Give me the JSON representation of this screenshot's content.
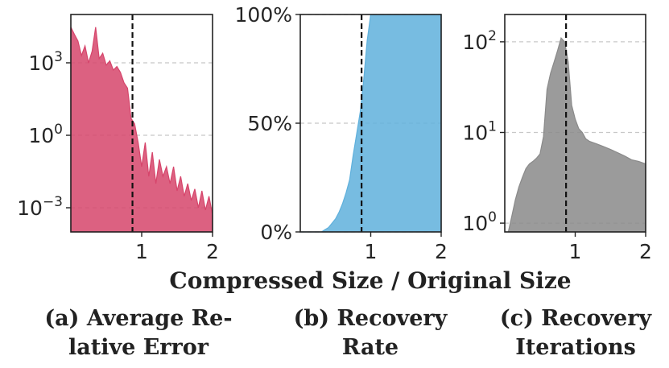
{
  "figure": {
    "xlabel": "Compressed Size / Original Size",
    "captions": [
      [
        "(a) Average Re-",
        "lative Error"
      ],
      [
        "(b) Recovery",
        "Rate"
      ],
      [
        "(c) Recovery",
        "Iterations"
      ]
    ]
  },
  "chart_data": [
    {
      "type": "area",
      "title": "(a) Average Relative Error",
      "color": "#d6456b",
      "yscale": "log",
      "xlim": [
        0,
        2
      ],
      "ylim": [
        0.0001,
        100000
      ],
      "xticks": [
        1,
        2
      ],
      "yticks": [
        {
          "value": 1000,
          "base": "10",
          "exp": "3"
        },
        {
          "value": 1,
          "base": "10",
          "exp": "0"
        },
        {
          "value": 0.001,
          "base": "10",
          "exp": "−3"
        }
      ],
      "vline": 0.87,
      "x": [
        0.0,
        0.05,
        0.1,
        0.15,
        0.2,
        0.25,
        0.3,
        0.35,
        0.4,
        0.45,
        0.5,
        0.55,
        0.6,
        0.65,
        0.7,
        0.75,
        0.8,
        0.85,
        0.9,
        0.95,
        1.0,
        1.05,
        1.1,
        1.15,
        1.2,
        1.25,
        1.3,
        1.35,
        1.4,
        1.45,
        1.5,
        1.55,
        1.6,
        1.65,
        1.7,
        1.75,
        1.8,
        1.85,
        1.9,
        1.95,
        2.0
      ],
      "y": [
        30000,
        15000,
        8000,
        2000,
        5000,
        1000,
        3000,
        30000,
        1500,
        2500,
        800,
        1200,
        500,
        700,
        400,
        150,
        90,
        5,
        3,
        0.5,
        0.05,
        0.5,
        0.02,
        0.2,
        0.01,
        0.1,
        0.02,
        0.05,
        0.01,
        0.05,
        0.005,
        0.02,
        0.003,
        0.01,
        0.002,
        0.006,
        0.001,
        0.005,
        0.0008,
        0.003,
        0.0005
      ]
    },
    {
      "type": "area",
      "title": "(b) Recovery Rate",
      "color": "#5fb0dc",
      "xlim": [
        0,
        2
      ],
      "ylim": [
        0,
        100
      ],
      "xticks": [
        1,
        2
      ],
      "yticks": [
        {
          "value": 0,
          "label": "0%"
        },
        {
          "value": 50,
          "label": "50%"
        },
        {
          "value": 100,
          "label": "100%"
        }
      ],
      "vline": 0.87,
      "x": [
        0.0,
        0.3,
        0.35,
        0.4,
        0.45,
        0.5,
        0.55,
        0.6,
        0.65,
        0.7,
        0.75,
        0.8,
        0.85,
        0.9,
        0.95,
        1.0,
        1.1,
        1.5,
        2.0
      ],
      "y": [
        0,
        0,
        1,
        2,
        4,
        6,
        9,
        13,
        18,
        24,
        35,
        45,
        55,
        70,
        88,
        100,
        100,
        100,
        100
      ]
    },
    {
      "type": "area",
      "title": "(c) Recovery Iterations",
      "color": "#8a8a8a",
      "yscale": "log",
      "xlim": [
        0,
        2
      ],
      "ylim": [
        0.8,
        200
      ],
      "xticks": [
        1,
        2
      ],
      "yticks": [
        {
          "value": 100,
          "base": "10",
          "exp": "2"
        },
        {
          "value": 10,
          "base": "10",
          "exp": "1"
        },
        {
          "value": 1,
          "base": "10",
          "exp": "0"
        }
      ],
      "vline": 0.87,
      "x": [
        0.0,
        0.05,
        0.1,
        0.15,
        0.2,
        0.25,
        0.3,
        0.35,
        0.4,
        0.45,
        0.5,
        0.55,
        0.6,
        0.65,
        0.7,
        0.75,
        0.8,
        0.85,
        0.9,
        0.95,
        1.0,
        1.05,
        1.1,
        1.15,
        1.2,
        1.3,
        1.4,
        1.5,
        1.6,
        1.7,
        1.8,
        1.9,
        2.0
      ],
      "y": [
        0.8,
        0.8,
        1.2,
        1.8,
        2.5,
        3.2,
        4.0,
        4.5,
        4.8,
        5.2,
        5.8,
        9,
        30,
        45,
        60,
        80,
        110,
        100,
        60,
        20,
        14,
        11,
        10,
        8.5,
        8,
        7.5,
        7,
        6.5,
        6,
        5.5,
        5,
        4.8,
        4.5
      ]
    }
  ]
}
